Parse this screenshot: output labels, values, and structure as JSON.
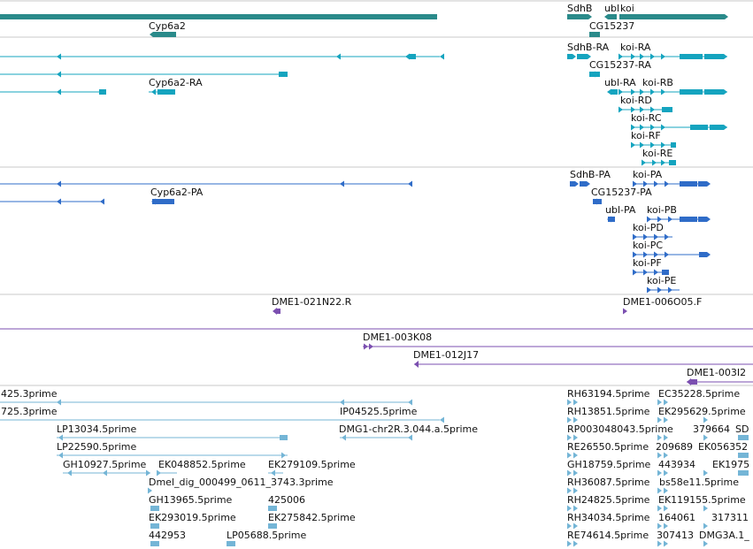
{
  "colors": {
    "gene": "#2a8a8a",
    "transcript": "#15a4bf",
    "protein": "#2f6cc8",
    "bac": "#7b4fb0",
    "est": "#74b5d6",
    "divider": "#c8c8c8"
  },
  "gene_labels": [
    "SdhB",
    "ubl",
    "koi",
    "Cyp6a2",
    "CG15237"
  ],
  "transcript_labels": [
    "SdhB-RA",
    "koi-RA",
    "CG15237-RA",
    "Cyp6a2-RA",
    "ubl-RA",
    "koi-RB",
    "koi-RD",
    "koi-RC",
    "koi-RF",
    "koi-RE"
  ],
  "protein_labels": [
    "SdhB-PA",
    "koi-PA",
    "Cyp6a2-PA",
    "CG15237-PA",
    "ubl-PA",
    "koi-PB",
    "koi-PD",
    "koi-PC",
    "koi-PF",
    "koi-PE"
  ],
  "bac_end_labels": [
    "DME1-021N22.R",
    "DME1-006O05.F"
  ],
  "bac_labels": [
    "DME1-003K08",
    "DME1-012J17",
    "DME1-003I2"
  ],
  "est_labels": [
    "425.3prime",
    "725.3prime",
    "LP13034.5prime",
    "LP22590.5prime",
    "GH10927.5prime",
    "EK048852.5prime",
    "EK279109.5prime",
    "Dmel_dig_000499_0611_3743.3prime",
    "GH13965.5prime",
    "425006",
    "EK293019.5prime",
    "EK275842.5prime",
    "442953",
    "LP05688.5prime",
    "IP04525.5prime",
    "DMG1-chr2R.3.044.a.5prime",
    "RH63194.5prime",
    "EC35228.5prime",
    "RH13851.5prime",
    "EK295629.5prime",
    "RP003048043.5prime",
    "379664",
    "SD",
    "RE26550.5prime",
    "209689",
    "EK056352",
    "GH18759.5prime",
    "443934",
    "EK1975",
    "RH36087.5prime",
    "bs58e11.5prime",
    "RH24825.5prime",
    "EK119155.5prime",
    "RH34034.5prime",
    "164061",
    "317311",
    "RE74614.5prime",
    "307413",
    "DMG3A.1_"
  ]
}
